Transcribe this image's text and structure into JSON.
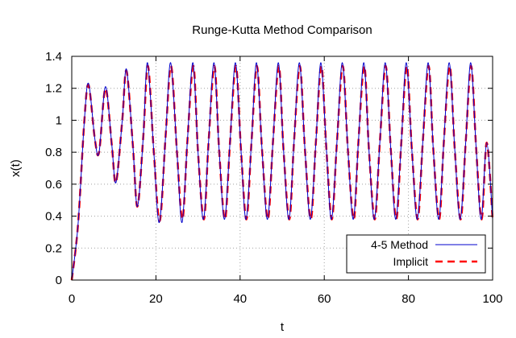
{
  "chart_data": {
    "type": "line",
    "title": "Runge-Kutta Method Comparison",
    "xlabel": "t",
    "ylabel": "x(t)",
    "xlim": [
      0,
      100
    ],
    "ylim": [
      0,
      1.4
    ],
    "x_ticks": [
      0,
      20,
      40,
      60,
      80,
      100
    ],
    "y_ticks": [
      0,
      0.2,
      0.4,
      0.6,
      0.8,
      1,
      1.2,
      1.4
    ],
    "x_tick_labels": [
      "0",
      "20",
      "40",
      "60",
      "80",
      "100"
    ],
    "y_tick_labels": [
      "0",
      "0.2",
      "0.4",
      "0.6",
      "0.8",
      "1",
      "1.2",
      "1.4"
    ],
    "grid": true,
    "legend_position": "bottom-right",
    "series": [
      {
        "name": "4-5 Method",
        "color": "#0000cc",
        "style": "solid",
        "x": [
          0,
          1.5,
          3.0,
          4.0,
          5.5,
          6.5,
          8.0,
          9.5,
          10.5,
          12.0,
          13.0,
          14.5,
          15.6,
          17.0,
          18.0,
          19.5,
          20.8,
          22.3,
          23.5,
          25.0,
          26.2,
          27.5,
          28.8,
          30.0,
          31.3,
          32.5,
          33.8,
          35.0,
          36.3,
          37.6,
          38.9,
          40.2,
          41.4,
          42.7,
          43.9,
          45.2,
          46.5,
          47.8,
          49.1,
          50.3,
          51.6,
          52.8,
          54.1,
          55.4,
          56.7,
          58.0,
          59.2,
          60.5,
          61.7,
          63.0,
          64.3,
          65.6,
          66.9,
          68.1,
          69.4,
          70.6,
          71.9,
          73.2,
          74.5,
          75.8,
          77.0,
          78.3,
          79.5,
          80.8,
          82.1,
          83.4,
          84.7,
          85.9,
          87.2,
          88.4,
          89.7,
          91.0,
          92.3,
          93.6,
          94.8,
          96.1,
          97.3,
          98.6,
          100.0
        ],
        "y": [
          0,
          0.35,
          1.0,
          1.23,
          0.88,
          0.8,
          1.21,
          0.85,
          0.61,
          1.0,
          1.32,
          0.85,
          0.46,
          0.9,
          1.36,
          0.8,
          0.36,
          0.9,
          1.36,
          0.8,
          0.36,
          0.88,
          1.36,
          0.8,
          0.38,
          0.86,
          1.36,
          0.82,
          0.38,
          0.86,
          1.36,
          0.82,
          0.38,
          0.86,
          1.36,
          0.82,
          0.38,
          0.86,
          1.36,
          0.82,
          0.38,
          0.86,
          1.36,
          0.82,
          0.38,
          0.86,
          1.36,
          0.82,
          0.38,
          0.86,
          1.36,
          0.82,
          0.38,
          0.86,
          1.36,
          0.82,
          0.38,
          0.86,
          1.36,
          0.82,
          0.38,
          0.86,
          1.36,
          0.82,
          0.38,
          0.86,
          1.36,
          0.82,
          0.38,
          0.86,
          1.36,
          0.82,
          0.38,
          0.86,
          1.36,
          0.82,
          0.38,
          0.86,
          0.38
        ]
      },
      {
        "name": "Implicit",
        "color": "#ff0000",
        "style": "dashed",
        "x": [
          0,
          1.5,
          3.0,
          4.0,
          5.5,
          6.5,
          8.0,
          9.5,
          10.5,
          12.0,
          13.0,
          14.5,
          15.6,
          17.0,
          18.1,
          19.5,
          20.9,
          22.3,
          23.6,
          25.0,
          26.3,
          27.5,
          28.9,
          30.0,
          31.4,
          32.5,
          33.9,
          35.0,
          36.4,
          37.6,
          39.0,
          40.2,
          41.5,
          42.7,
          44.0,
          45.2,
          46.6,
          47.8,
          49.2,
          50.3,
          51.7,
          52.8,
          54.2,
          55.4,
          56.8,
          58.0,
          59.3,
          60.5,
          61.8,
          63.0,
          64.4,
          65.6,
          67.0,
          68.1,
          69.5,
          70.6,
          72.0,
          73.2,
          74.6,
          75.8,
          77.1,
          78.3,
          79.6,
          80.8,
          82.2,
          83.4,
          84.8,
          85.9,
          87.3,
          88.4,
          89.8,
          91.0,
          92.4,
          93.6,
          94.9,
          96.1,
          97.4,
          98.6,
          100.0
        ],
        "y": [
          0,
          0.35,
          1.0,
          1.22,
          0.88,
          0.8,
          1.2,
          0.85,
          0.61,
          1.0,
          1.31,
          0.85,
          0.46,
          0.9,
          1.34,
          0.8,
          0.37,
          0.9,
          1.34,
          0.8,
          0.38,
          0.88,
          1.34,
          0.8,
          0.38,
          0.86,
          1.34,
          0.82,
          0.38,
          0.86,
          1.34,
          0.82,
          0.38,
          0.86,
          1.34,
          0.82,
          0.38,
          0.86,
          1.34,
          0.82,
          0.38,
          0.86,
          1.34,
          0.82,
          0.38,
          0.86,
          1.34,
          0.82,
          0.38,
          0.86,
          1.34,
          0.82,
          0.38,
          0.86,
          1.34,
          0.82,
          0.38,
          0.86,
          1.34,
          0.82,
          0.38,
          0.86,
          1.34,
          0.82,
          0.38,
          0.86,
          1.34,
          0.82,
          0.38,
          0.86,
          1.34,
          0.82,
          0.38,
          0.86,
          1.34,
          0.82,
          0.38,
          0.86,
          0.38
        ]
      }
    ]
  }
}
